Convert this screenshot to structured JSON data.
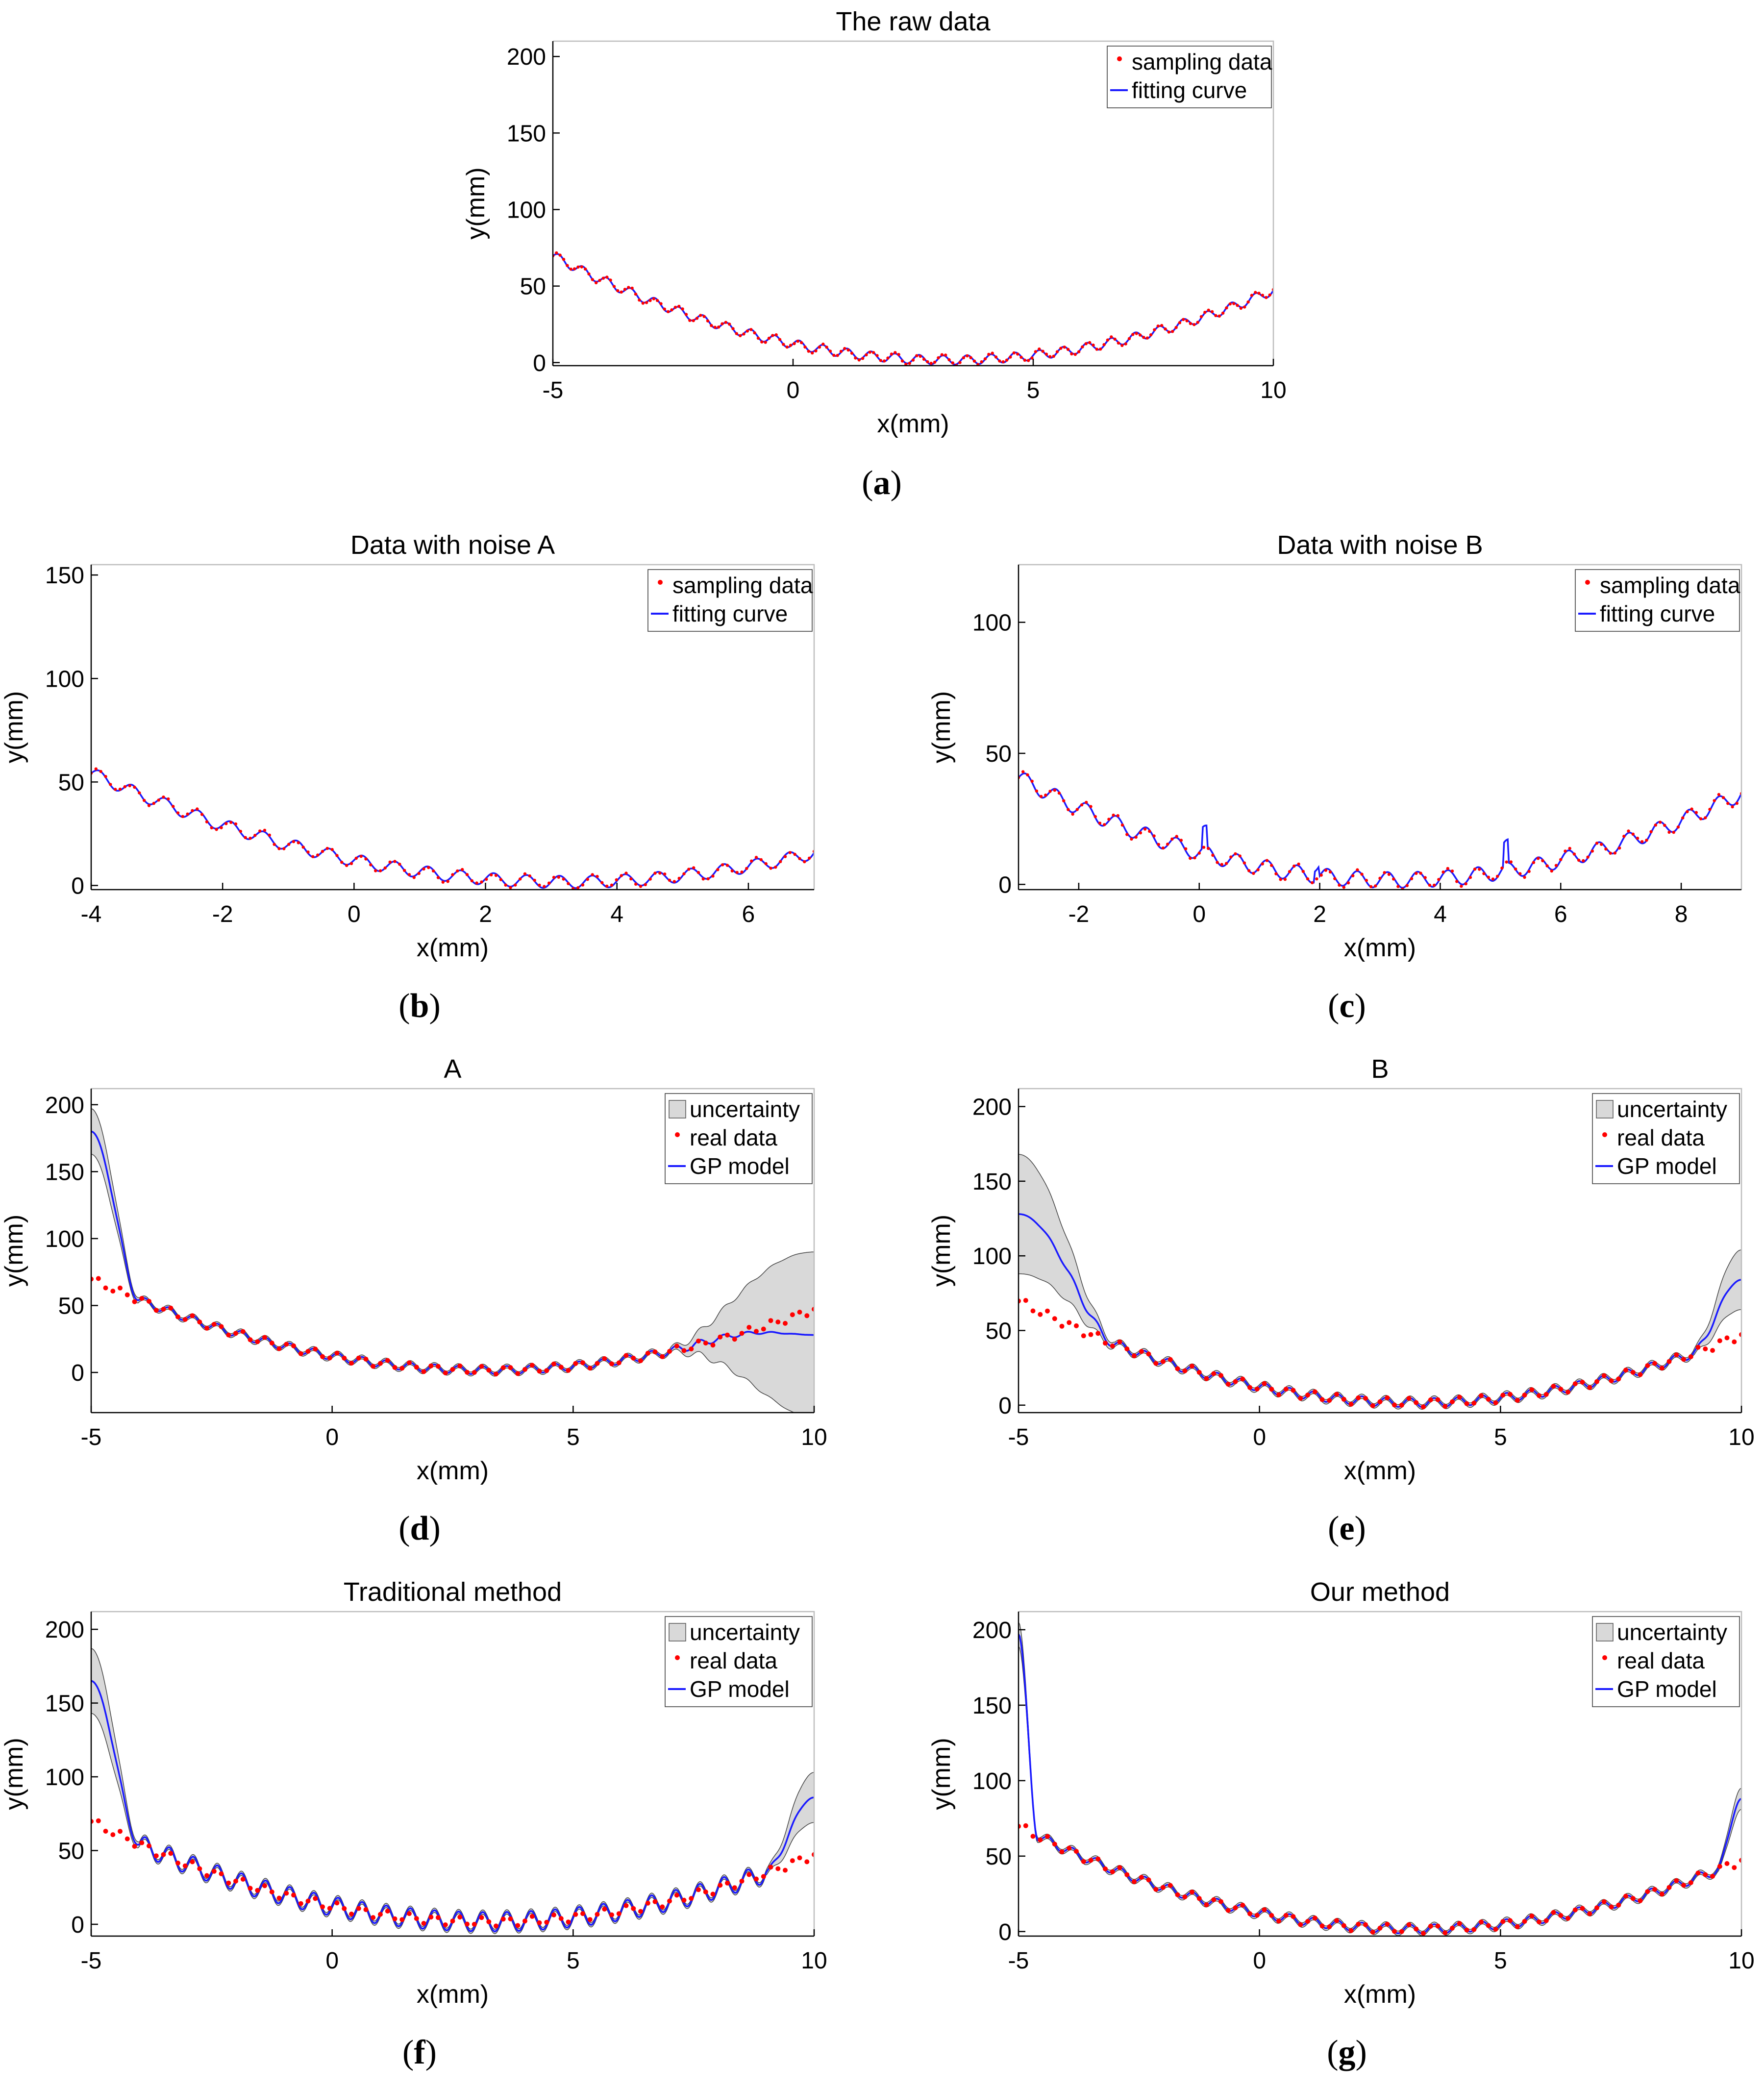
{
  "figure": {
    "colors": {
      "sampling": "#ff0000",
      "curve": "#1a1aff",
      "band_fill": "#d9d9d9",
      "band_edge": "#444444"
    },
    "panels": [
      {
        "id": "a",
        "caption": "(a)",
        "caption_letter": "a"
      },
      {
        "id": "b",
        "caption": "(b)",
        "caption_letter": "b"
      },
      {
        "id": "c",
        "caption": "(c)",
        "caption_letter": "c"
      },
      {
        "id": "d",
        "caption": "(d)",
        "caption_letter": "d"
      },
      {
        "id": "e",
        "caption": "(e)",
        "caption_letter": "e"
      },
      {
        "id": "f",
        "caption": "(f)",
        "caption_letter": "f"
      },
      {
        "id": "g",
        "caption": "(g)",
        "caption_letter": "g"
      }
    ]
  },
  "chart_data": [
    {
      "id": "a",
      "type": "line",
      "title": "The raw data",
      "xlabel": "x(mm)",
      "ylabel": "y(mm)",
      "xlim": [
        -5,
        10
      ],
      "ylim": [
        -2,
        210
      ],
      "xticks": [
        -5,
        0,
        5,
        10
      ],
      "xtick_labels": [
        "-5",
        "0",
        "5",
        "10"
      ],
      "yticks": [
        0,
        50,
        100,
        150,
        200
      ],
      "ytick_labels": [
        "0",
        "50",
        "100",
        "150",
        "200"
      ],
      "legend": {
        "position": "top-right",
        "entries": [
          "sampling data",
          "fitting curve"
        ]
      },
      "function": "y = (x-3.5)^2 + 3*sin(4*pi*x) + x/2 (approx.)",
      "series": [
        {
          "name": "sampling data",
          "style": "markers",
          "x_range": [
            -5,
            10
          ],
          "points": 200
        },
        {
          "name": "fitting curve",
          "style": "line",
          "x_range": [
            -5,
            10
          ]
        }
      ]
    },
    {
      "id": "b",
      "type": "line",
      "title": "Data with noise A",
      "xlabel": "x(mm)",
      "ylabel": "y(mm)",
      "xlim": [
        -4,
        7
      ],
      "ylim": [
        -2,
        155
      ],
      "xticks": [
        -4,
        -2,
        0,
        2,
        4,
        6
      ],
      "xtick_labels": [
        "-4",
        "-2",
        "0",
        "2",
        "4",
        "6"
      ],
      "yticks": [
        0,
        50,
        100,
        150
      ],
      "ytick_labels": [
        "0",
        "50",
        "100",
        "150"
      ],
      "legend": {
        "position": "top-right",
        "entries": [
          "sampling data",
          "fitting curve"
        ]
      },
      "series": [
        {
          "name": "sampling data",
          "style": "markers",
          "x_range": [
            -4,
            7
          ],
          "points": 150
        },
        {
          "name": "fitting curve",
          "style": "line",
          "x_range": [
            -4,
            7
          ]
        }
      ]
    },
    {
      "id": "c",
      "type": "line",
      "title": "Data with noise B",
      "xlabel": "x(mm)",
      "ylabel": "y(mm)",
      "xlim": [
        -3,
        9
      ],
      "ylim": [
        -2,
        122
      ],
      "xticks": [
        -2,
        0,
        2,
        4,
        6,
        8
      ],
      "xtick_labels": [
        "-2",
        "0",
        "2",
        "4",
        "6",
        "8"
      ],
      "yticks": [
        0,
        50,
        100
      ],
      "ytick_labels": [
        "0",
        "50",
        "100"
      ],
      "legend": {
        "position": "top-right",
        "entries": [
          "sampling data",
          "fitting curve"
        ]
      },
      "spikes": [
        {
          "x": 0.1,
          "dy": 8
        },
        {
          "x": 5.1,
          "dy": 9
        },
        {
          "x": 1.95,
          "dy": 4
        }
      ],
      "series": [
        {
          "name": "sampling data",
          "style": "markers",
          "x_range": [
            -3,
            9
          ],
          "points": 160
        },
        {
          "name": "fitting curve",
          "style": "line",
          "x_range": [
            -3,
            9
          ]
        }
      ]
    },
    {
      "id": "d",
      "type": "line",
      "title": "A",
      "xlabel": "x(mm)",
      "ylabel": "y(mm)",
      "xlim": [
        -5,
        10
      ],
      "ylim": [
        -30,
        212
      ],
      "xticks": [
        -5,
        0,
        5,
        10
      ],
      "xtick_labels": [
        "-5",
        "0",
        "5",
        "10"
      ],
      "yticks": [
        0,
        50,
        100,
        150,
        200
      ],
      "ytick_labels": [
        "0",
        "50",
        "100",
        "150",
        "200"
      ],
      "legend": {
        "position": "top-right",
        "entries": [
          "uncertainty",
          "real data",
          "GP model"
        ]
      },
      "gp": {
        "train_range": [
          -4,
          7
        ],
        "left_target": 180,
        "right_target": 28,
        "left_band": 15,
        "right_band": 60
      },
      "series": [
        {
          "name": "uncertainty",
          "style": "band"
        },
        {
          "name": "real data",
          "style": "markers",
          "x_range": [
            -5,
            10
          ],
          "points": 100
        },
        {
          "name": "GP model",
          "style": "line",
          "x_range": [
            -5,
            10
          ]
        }
      ]
    },
    {
      "id": "e",
      "type": "line",
      "title": "B",
      "xlabel": "x(mm)",
      "ylabel": "y(mm)",
      "xlim": [
        -5,
        10
      ],
      "ylim": [
        -5,
        212
      ],
      "xticks": [
        -5,
        0,
        5,
        10
      ],
      "xtick_labels": [
        "-5",
        "0",
        "5",
        "10"
      ],
      "yticks": [
        0,
        50,
        100,
        150,
        200
      ],
      "ytick_labels": [
        "0",
        "50",
        "100",
        "150",
        "200"
      ],
      "legend": {
        "position": "top-right",
        "entries": [
          "uncertainty",
          "real data",
          "GP model"
        ]
      },
      "gp": {
        "train_range": [
          -3,
          9
        ],
        "left_target": 128,
        "right_target": 84,
        "left_band": 38,
        "right_band": 18
      },
      "series": [
        {
          "name": "uncertainty",
          "style": "band"
        },
        {
          "name": "real data",
          "style": "markers",
          "x_range": [
            -5,
            10
          ],
          "points": 100
        },
        {
          "name": "GP model",
          "style": "line",
          "x_range": [
            -5,
            10
          ]
        }
      ]
    },
    {
      "id": "f",
      "type": "line",
      "title": "Traditional method",
      "xlabel": "x(mm)",
      "ylabel": "y(mm)",
      "xlim": [
        -5,
        10
      ],
      "ylim": [
        -8,
        212
      ],
      "xticks": [
        -5,
        0,
        5,
        10
      ],
      "xtick_labels": [
        "-5",
        "0",
        "5",
        "10"
      ],
      "yticks": [
        0,
        50,
        100,
        150,
        200
      ],
      "ytick_labels": [
        "0",
        "50",
        "100",
        "150",
        "200"
      ],
      "legend": {
        "position": "top-right",
        "entries": [
          "uncertainty",
          "real data",
          "GP model"
        ]
      },
      "gp": {
        "train_range": [
          -4,
          9
        ],
        "left_target": 165,
        "right_target": 86,
        "left_band": 20,
        "right_band": 15,
        "amp_scale": 2.2
      },
      "series": [
        {
          "name": "uncertainty",
          "style": "band"
        },
        {
          "name": "real data",
          "style": "markers",
          "x_range": [
            -5,
            10
          ],
          "points": 100
        },
        {
          "name": "GP model",
          "style": "line",
          "x_range": [
            -5,
            10
          ]
        }
      ]
    },
    {
      "id": "g",
      "type": "line",
      "title": "Our method",
      "xlabel": "x(mm)",
      "ylabel": "y(mm)",
      "xlim": [
        -5,
        10
      ],
      "ylim": [
        -3,
        212
      ],
      "xticks": [
        -5,
        0,
        5,
        10
      ],
      "xtick_labels": [
        "-5",
        "0",
        "5",
        "10"
      ],
      "yticks": [
        0,
        50,
        100,
        150,
        200
      ],
      "ytick_labels": [
        "0",
        "50",
        "100",
        "150",
        "200"
      ],
      "legend": {
        "position": "top-right",
        "entries": [
          "uncertainty",
          "real data",
          "GP model"
        ]
      },
      "gp": {
        "train_range": [
          -4.6,
          9.5
        ],
        "left_target": 197,
        "right_target": 88,
        "left_band": 6,
        "right_band": 5
      },
      "series": [
        {
          "name": "uncertainty",
          "style": "band"
        },
        {
          "name": "real data",
          "style": "markers",
          "x_range": [
            -5,
            10
          ],
          "points": 100
        },
        {
          "name": "GP model",
          "style": "line",
          "x_range": [
            -5,
            10
          ]
        }
      ]
    }
  ]
}
